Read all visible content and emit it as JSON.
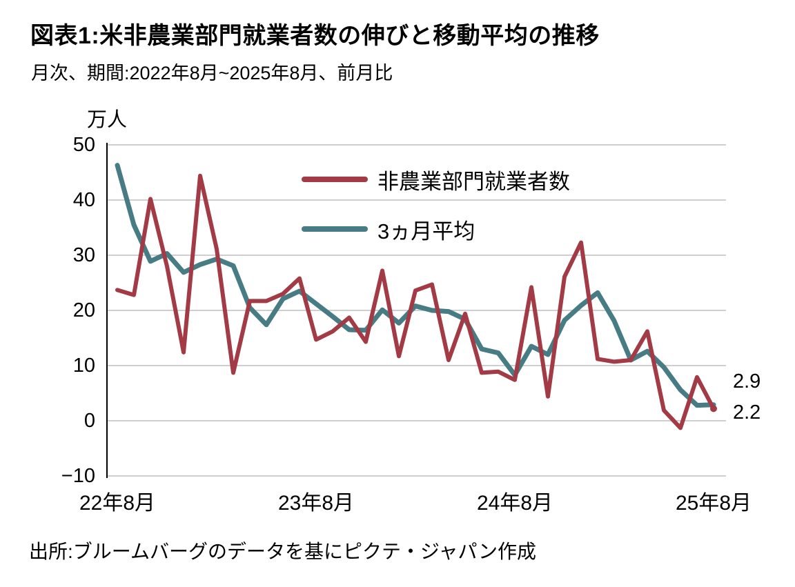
{
  "header": {
    "title": "図表1:米非農業部門就業者数の伸びと移動平均の推移",
    "subtitle": "月次、期間:2022年8月~2025年8月、前月比"
  },
  "chart_data": {
    "type": "line",
    "unit_label": "万人",
    "x": [
      "2022-08",
      "2022-09",
      "2022-10",
      "2022-11",
      "2022-12",
      "2023-01",
      "2023-02",
      "2023-03",
      "2023-04",
      "2023-05",
      "2023-06",
      "2023-07",
      "2023-08",
      "2023-09",
      "2023-10",
      "2023-11",
      "2023-12",
      "2024-01",
      "2024-02",
      "2024-03",
      "2024-04",
      "2024-05",
      "2024-06",
      "2024-07",
      "2024-08",
      "2024-09",
      "2024-10",
      "2024-11",
      "2024-12",
      "2025-01",
      "2025-02",
      "2025-03",
      "2025-04",
      "2025-05",
      "2025-06",
      "2025-07",
      "2025-08"
    ],
    "series": [
      {
        "name": "非農業部門就業者数",
        "color": "#A23B45",
        "values": [
          23.7,
          22.8,
          40.2,
          28.0,
          12.4,
          44.4,
          31.1,
          8.7,
          21.7,
          21.7,
          23.0,
          25.8,
          14.7,
          16.2,
          18.7,
          14.3,
          27.2,
          11.7,
          23.6,
          24.7,
          11.0,
          19.4,
          8.7,
          8.9,
          7.4,
          24.2,
          4.4,
          26.1,
          32.3,
          11.2,
          10.7,
          11.0,
          16.2,
          1.9,
          -1.3,
          7.9,
          2.2
        ]
      },
      {
        "name": "3ヵ月平均",
        "color": "#477C85",
        "values": [
          46.3,
          35.5,
          28.9,
          30.3,
          26.9,
          28.3,
          29.3,
          28.1,
          20.5,
          17.4,
          22.1,
          23.5,
          21.2,
          18.9,
          16.5,
          16.4,
          20.1,
          17.7,
          20.8,
          20.0,
          19.8,
          18.4,
          13.0,
          12.3,
          8.3,
          13.5,
          12.0,
          18.2,
          20.9,
          23.2,
          18.1,
          11.0,
          12.6,
          9.7,
          5.6,
          2.8,
          2.9
        ]
      }
    ],
    "ylim": [
      -10,
      50
    ],
    "yticks": [
      {
        "value": 50,
        "label": "50"
      },
      {
        "value": 40,
        "label": "40"
      },
      {
        "value": 30,
        "label": "30"
      },
      {
        "value": 20,
        "label": "20"
      },
      {
        "value": 10,
        "label": "10"
      },
      {
        "value": 0,
        "label": "0"
      },
      {
        "value": -10,
        "label": "−10"
      }
    ],
    "xticks": [
      {
        "index": 0,
        "label": "22年8月"
      },
      {
        "index": 12,
        "label": "23年8月"
      },
      {
        "index": 24,
        "label": "24年8月"
      },
      {
        "index": 36,
        "label": "25年8月"
      }
    ],
    "end_labels": [
      {
        "text": "2.9",
        "series": "3ヵ月平均"
      },
      {
        "text": "2.2",
        "series": "非農業部門就業者数"
      }
    ],
    "grid": true,
    "legend_position": "inside-top-center"
  },
  "footer": {
    "source": "出所:ブルームバーグのデータを基にピクテ・ジャパン作成"
  }
}
